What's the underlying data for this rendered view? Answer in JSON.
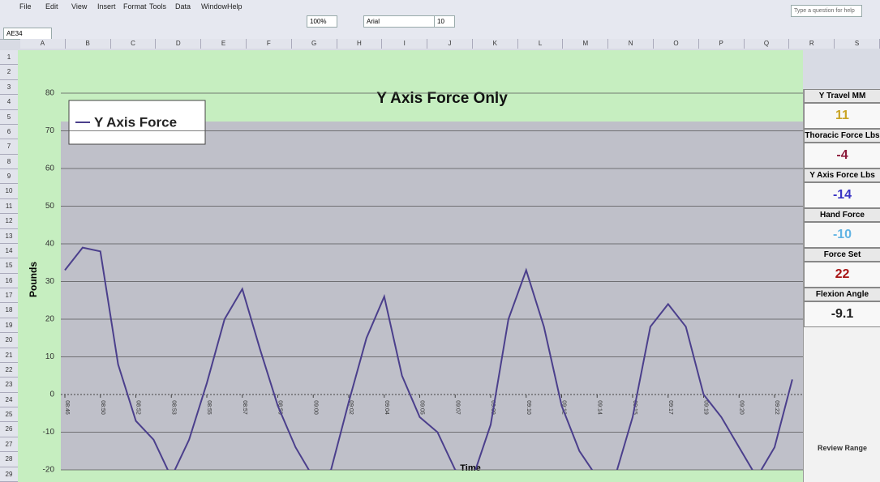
{
  "menu": [
    "File",
    "Edit",
    "View",
    "Insert",
    "Format",
    "Tools",
    "Data",
    "Window",
    "Help"
  ],
  "name_box": "AE34",
  "font_name": "Arial",
  "font_size": "10",
  "zoom": "100%",
  "help_box": "Type a question for help",
  "columns": [
    "A",
    "B",
    "C",
    "D",
    "E",
    "F",
    "G",
    "H",
    "I",
    "J",
    "K",
    "L",
    "M",
    "N",
    "O",
    "P",
    "Q",
    "R",
    "S"
  ],
  "rows": [
    "1",
    "2",
    "3",
    "4",
    "5",
    "6",
    "7",
    "8",
    "9",
    "10",
    "11",
    "12",
    "13",
    "14",
    "15",
    "16",
    "17",
    "18",
    "19",
    "20",
    "21",
    "22",
    "23",
    "24",
    "25",
    "26",
    "27",
    "28",
    "29"
  ],
  "metrics": [
    {
      "label": "Y Travel  MM",
      "value": "11",
      "color": "#c9a424"
    },
    {
      "label": "Thoracic Force Lbs",
      "value": "-4",
      "color": "#8b1a3a"
    },
    {
      "label": "Y Axis Force Lbs",
      "value": "-14",
      "color": "#3a34c4"
    },
    {
      "label": "Hand Force",
      "value": "-10",
      "color": "#62b4e4"
    },
    {
      "label": "Force Set",
      "value": "22",
      "color": "#a81414"
    },
    {
      "label": "Flexion Angle",
      "value": "-9.1",
      "color": "#222222"
    }
  ],
  "button": "Review Range",
  "chart_data": {
    "type": "line",
    "title": "Y Axis Force Only",
    "ylabel": "Pounds",
    "xlabel": "Time",
    "categories": [
      "08:46",
      null,
      "08:50",
      null,
      "08:52",
      null,
      "08:53",
      null,
      "08:55",
      null,
      "08:57",
      null,
      "08:59",
      null,
      "09:00",
      null,
      "09:02",
      null,
      "09:04",
      null,
      "09:05",
      null,
      "09:07",
      null,
      "09:09",
      null,
      "09:10",
      null,
      "09:12",
      null,
      "09:14",
      null,
      "09:15",
      null,
      "09:17",
      null,
      "09:19",
      null,
      "09:20",
      null,
      "09:22",
      null
    ],
    "series": [
      {
        "name": "Y Axis Force",
        "color": "#4b3f8c",
        "values": [
          33,
          39,
          38,
          8,
          -7,
          -12,
          -22,
          -12,
          3,
          20,
          28,
          12,
          -3,
          -14,
          -22,
          -20,
          -2,
          15,
          26,
          5,
          -6,
          -10,
          -20,
          -22,
          -8,
          20,
          33,
          18,
          -3,
          -15,
          -22,
          -22,
          -6,
          18,
          24,
          18,
          0,
          -6,
          -14,
          -22,
          -14,
          4
        ]
      }
    ],
    "ylim": [
      -20,
      80
    ],
    "yticks": [
      -20,
      -10,
      0,
      10,
      20,
      30,
      40,
      50,
      60,
      70,
      80
    ],
    "grid": true,
    "legend": "top-left"
  }
}
